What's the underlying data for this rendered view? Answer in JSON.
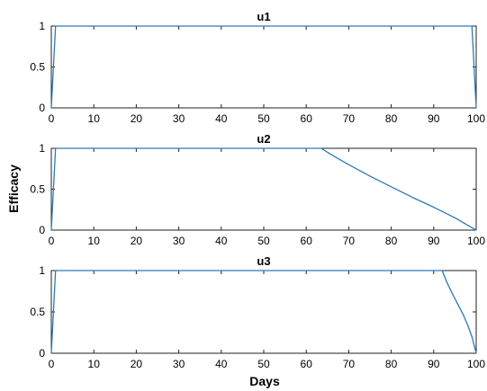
{
  "figure": {
    "ylabel": "Efficacy",
    "xlabel": "Days"
  },
  "colors": {
    "series": "#2a7ab8"
  },
  "chart_data": [
    {
      "type": "line",
      "title": "u1",
      "xlim": [
        0,
        100
      ],
      "ylim": [
        0,
        1
      ],
      "xticks": [
        "0",
        "10",
        "20",
        "30",
        "40",
        "50",
        "60",
        "70",
        "80",
        "90",
        "100"
      ],
      "yticks": [
        "0",
        "0.5",
        "1"
      ],
      "grid": false,
      "series": [
        {
          "x": [
            0,
            1,
            99,
            100
          ],
          "values": [
            0,
            1,
            1,
            0
          ]
        }
      ]
    },
    {
      "type": "line",
      "title": "u2",
      "xlim": [
        0,
        100
      ],
      "ylim": [
        0,
        1
      ],
      "xticks": [
        "0",
        "10",
        "20",
        "30",
        "40",
        "50",
        "60",
        "70",
        "80",
        "90",
        "100"
      ],
      "yticks": [
        "0",
        "0.5",
        "1"
      ],
      "grid": false,
      "series": [
        {
          "x": [
            0,
            1,
            63.5,
            66,
            70,
            75,
            80,
            85,
            90,
            95,
            100
          ],
          "values": [
            0,
            1,
            1,
            0.92,
            0.8,
            0.66,
            0.53,
            0.4,
            0.28,
            0.15,
            0
          ]
        }
      ]
    },
    {
      "type": "line",
      "title": "u3",
      "xlim": [
        0,
        100
      ],
      "ylim": [
        0,
        1
      ],
      "xticks": [
        "0",
        "10",
        "20",
        "30",
        "40",
        "50",
        "60",
        "70",
        "80",
        "90",
        "100"
      ],
      "yticks": [
        "0",
        "0.5",
        "1"
      ],
      "grid": false,
      "series": [
        {
          "x": [
            0,
            1,
            92,
            93,
            94,
            95,
            96,
            97,
            98,
            99,
            100
          ],
          "values": [
            0,
            1,
            1,
            0.87,
            0.76,
            0.66,
            0.56,
            0.46,
            0.34,
            0.2,
            0
          ]
        }
      ]
    }
  ]
}
